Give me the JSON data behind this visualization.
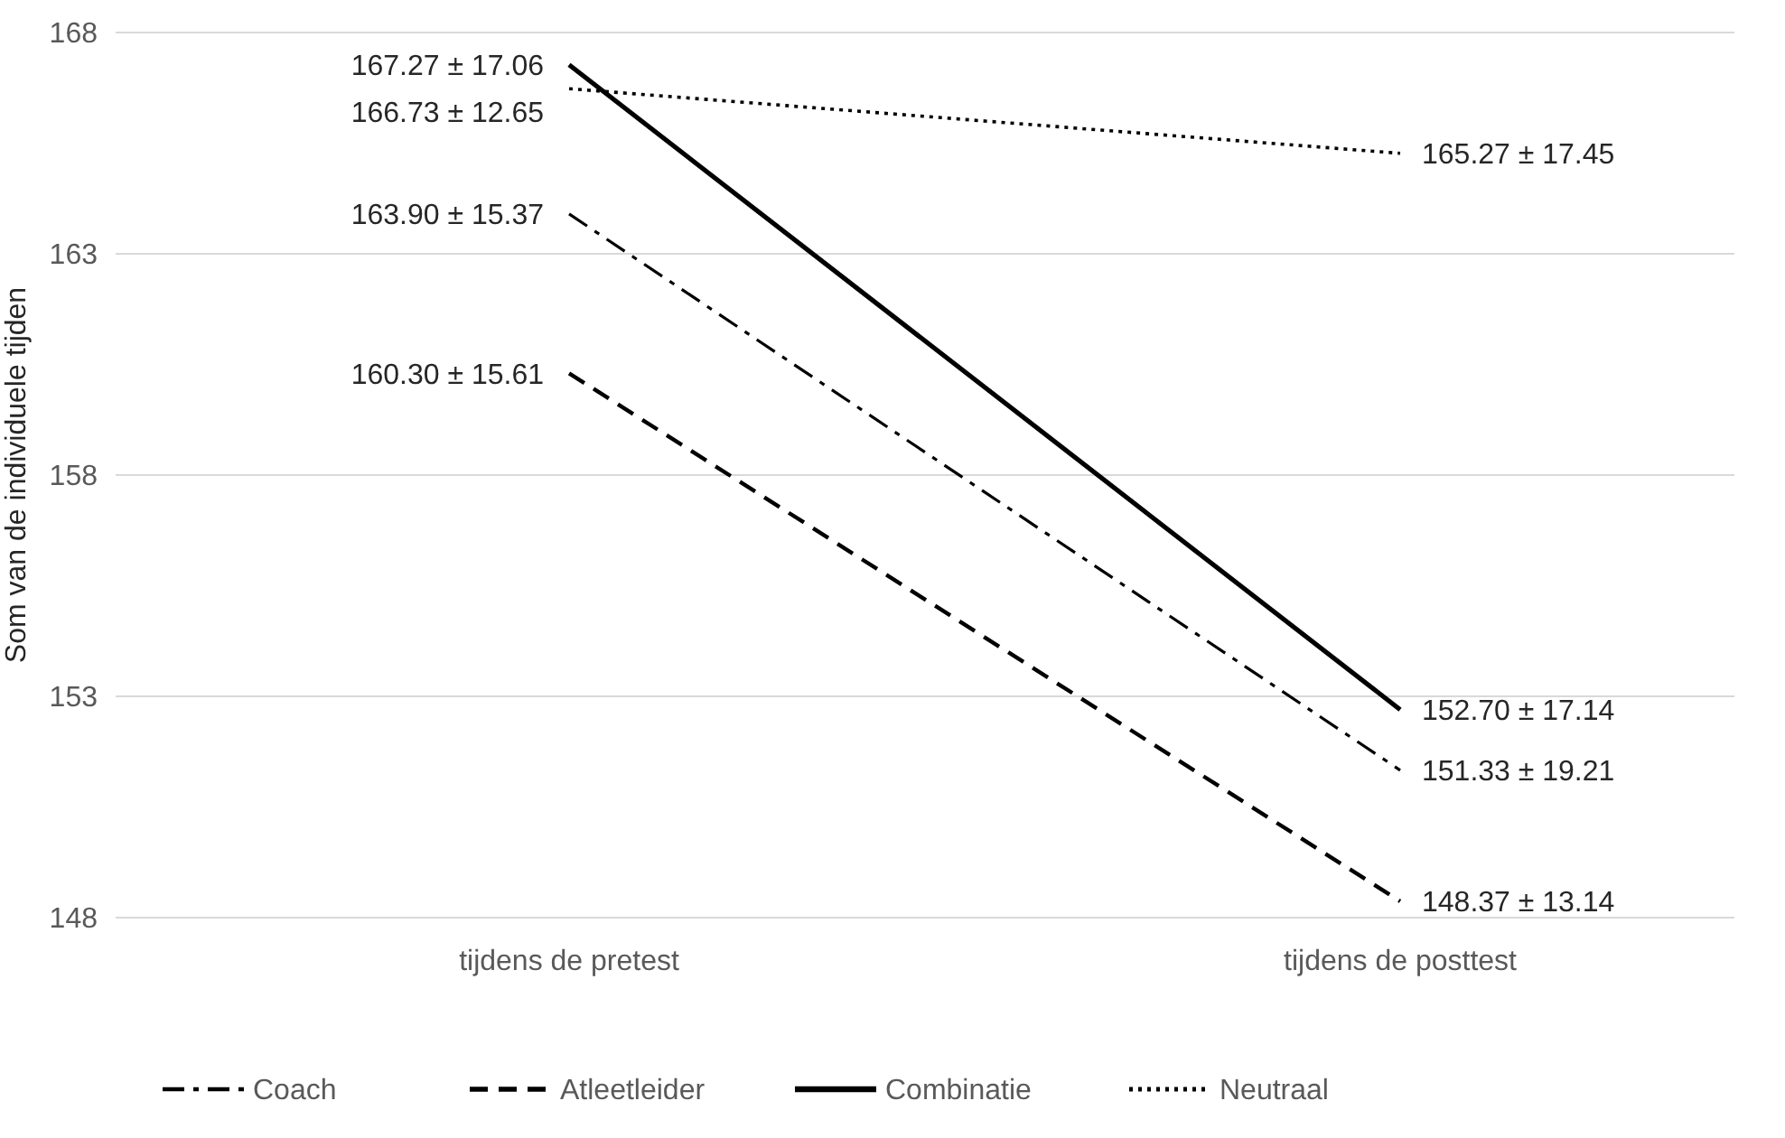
{
  "chart_data": {
    "type": "line",
    "ylabel": "Som van de individuele tijden",
    "categories": [
      "tijdens de pretest",
      "tijdens de posttest"
    ],
    "ylim": [
      148,
      168
    ],
    "yticks": [
      148,
      153,
      158,
      163,
      168
    ],
    "grid": "y",
    "legend": "bottom",
    "marker": "none",
    "series": [
      {
        "name": "Coach",
        "color": "#000000",
        "line_style": "dashdot",
        "values": [
          163.9,
          151.33
        ],
        "value_labels": [
          "163.90 ± 15.37",
          "151.33 ± 19.21"
        ]
      },
      {
        "name": "Atleetleider",
        "color": "#000000",
        "line_style": "dashed",
        "values": [
          160.3,
          148.37
        ],
        "value_labels": [
          "160.30 ± 15.61",
          "148.37 ± 13.14"
        ]
      },
      {
        "name": "Combinatie",
        "color": "#000000",
        "line_style": "solid",
        "values": [
          167.27,
          152.7
        ],
        "value_labels": [
          "167.27 ± 17.06",
          "152.70 ± 17.14"
        ]
      },
      {
        "name": "Neutraal",
        "color": "#000000",
        "line_style": "dotted",
        "values": [
          166.73,
          165.27
        ],
        "value_labels": [
          "166.73 ± 12.65",
          "165.27 ± 17.45"
        ]
      }
    ]
  }
}
